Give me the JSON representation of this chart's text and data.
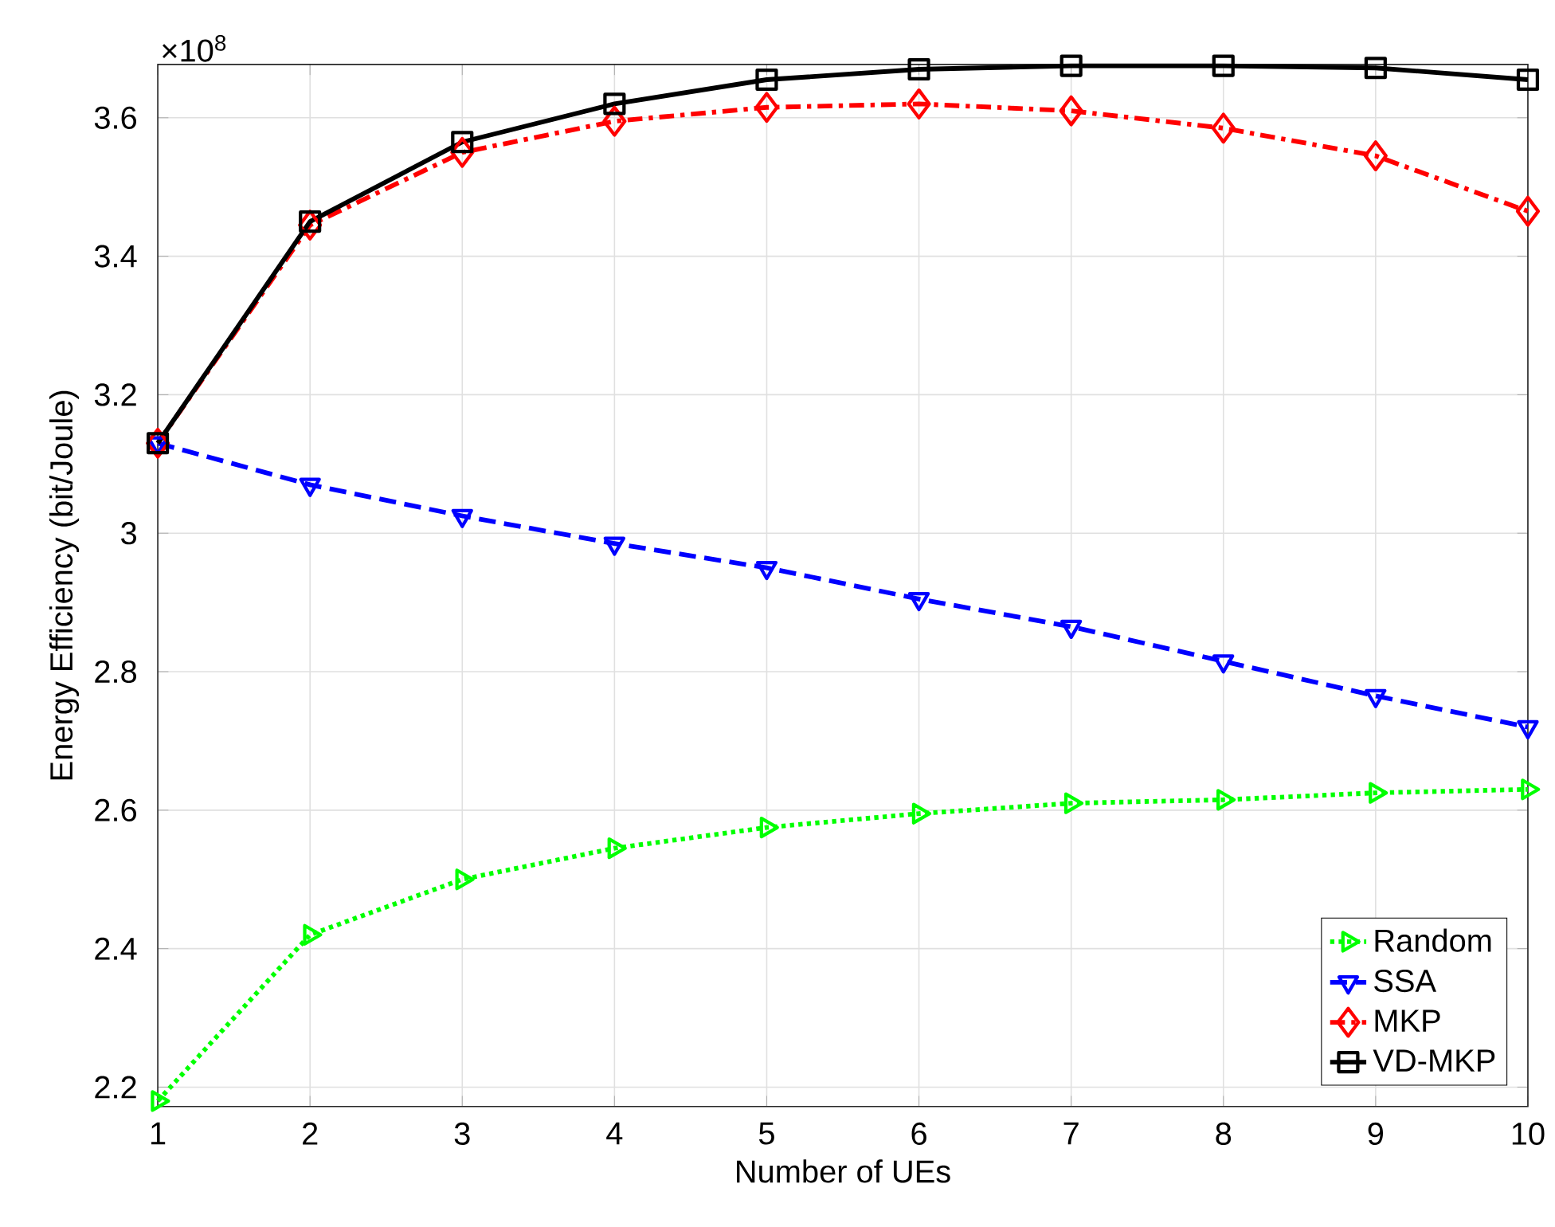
{
  "chart_data": {
    "type": "line",
    "xlabel": "Number of UEs",
    "ylabel": "Energy Efficiency (bit/Joule)",
    "annotations": [
      "×10$^{8}$"
    ],
    "x": [
      1,
      2,
      3,
      4,
      5,
      6,
      7,
      8,
      9,
      10
    ],
    "series": [
      {
        "name": "Random",
        "color": "#00ff00",
        "marker": "triangle-right",
        "line_style": "dotted",
        "values": [
          2.18,
          2.42,
          2.5,
          2.545,
          2.575,
          2.595,
          2.61,
          2.615,
          2.625,
          2.63
        ]
      },
      {
        "name": "SSA",
        "color": "#0000ff",
        "marker": "triangle-down",
        "line_style": "dashed",
        "values": [
          3.13,
          3.07,
          3.025,
          2.985,
          2.95,
          2.905,
          2.865,
          2.815,
          2.765,
          2.72
        ]
      },
      {
        "name": "MKP",
        "color": "#ff0000",
        "marker": "diamond",
        "line_style": "dashdot",
        "values": [
          3.13,
          3.445,
          3.55,
          3.595,
          3.615,
          3.62,
          3.61,
          3.585,
          3.545,
          3.465
        ]
      },
      {
        "name": "VD-MKP",
        "color": "#000000",
        "marker": "square",
        "line_style": "solid",
        "values": [
          3.13,
          3.45,
          3.565,
          3.62,
          3.655,
          3.67,
          3.675,
          3.675,
          3.672,
          3.655
        ]
      }
    ],
    "xlim": [
      1,
      10
    ],
    "xticks": [
      1,
      2,
      3,
      4,
      5,
      6,
      7,
      8,
      9,
      10
    ],
    "ylim": [
      2.172,
      3.677
    ],
    "yticks": [
      2.2,
      2.4,
      2.6,
      2.8,
      3,
      3.2,
      3.4,
      3.6
    ],
    "grid": true,
    "legend": "bottom right"
  }
}
